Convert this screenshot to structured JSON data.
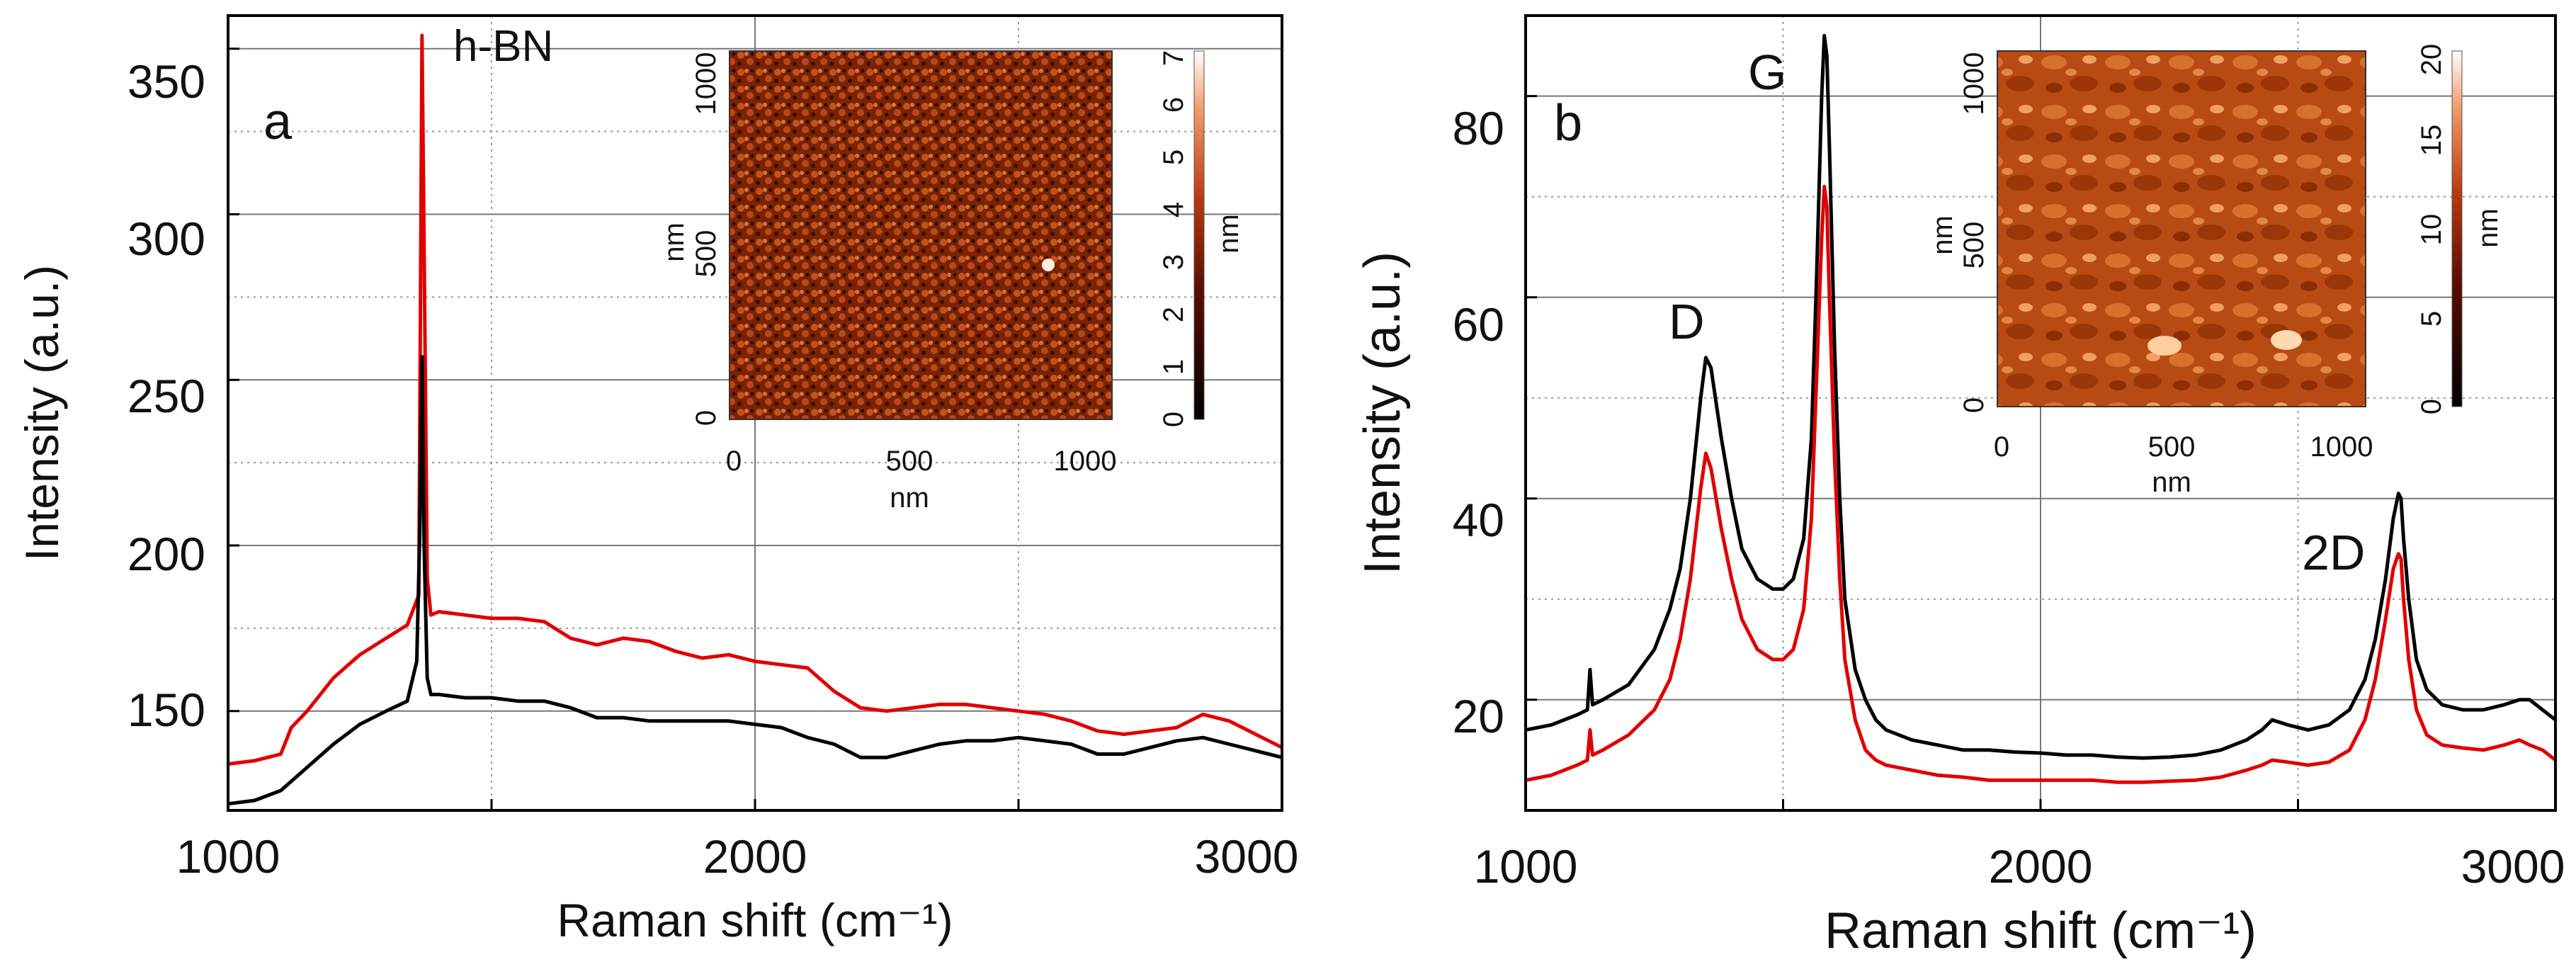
{
  "chart_data": [
    {
      "type": "line",
      "panel_label": "a",
      "xlabel": "Raman shift (cm⁻¹)",
      "ylabel": "Intensity (a.u.)",
      "xlim": [
        1000,
        3000
      ],
      "ylim": [
        120,
        360
      ],
      "xticks": [
        "1000",
        "2000",
        "3000"
      ],
      "yticks": [
        "150",
        "200",
        "250",
        "300",
        "350"
      ],
      "annotations": [
        {
          "text": "h-BN",
          "x": 1380,
          "y": 352
        }
      ],
      "series": [
        {
          "name": "red",
          "color": "#e00000",
          "x": [
            1000,
            1050,
            1100,
            1120,
            1150,
            1200,
            1250,
            1300,
            1340,
            1362,
            1368,
            1372,
            1378,
            1385,
            1400,
            1450,
            1500,
            1550,
            1600,
            1650,
            1700,
            1750,
            1800,
            1850,
            1900,
            1950,
            2000,
            2050,
            2100,
            2150,
            2200,
            2250,
            2300,
            2350,
            2400,
            2450,
            2500,
            2550,
            2600,
            2650,
            2700,
            2750,
            2800,
            2850,
            2900,
            2950,
            3000
          ],
          "values": [
            134,
            135,
            137,
            145,
            150,
            160,
            167,
            172,
            176,
            185,
            354,
            290,
            190,
            179,
            180,
            179,
            178,
            178,
            177,
            172,
            170,
            172,
            171,
            168,
            166,
            167,
            165,
            164,
            163,
            156,
            151,
            150,
            151,
            152,
            152,
            151,
            150,
            149,
            147,
            144,
            143,
            144,
            145,
            149,
            147,
            143,
            139
          ]
        },
        {
          "name": "black",
          "color": "#000000",
          "x": [
            1000,
            1050,
            1100,
            1150,
            1200,
            1250,
            1300,
            1340,
            1358,
            1364,
            1368,
            1372,
            1378,
            1385,
            1400,
            1450,
            1500,
            1550,
            1600,
            1650,
            1700,
            1750,
            1800,
            1850,
            1900,
            1950,
            2000,
            2050,
            2100,
            2150,
            2200,
            2250,
            2300,
            2350,
            2400,
            2450,
            2500,
            2550,
            2600,
            2650,
            2700,
            2750,
            2800,
            2850,
            2900,
            2950,
            3000
          ],
          "values": [
            122,
            123,
            126,
            133,
            140,
            146,
            150,
            153,
            165,
            205,
            257,
            200,
            160,
            155,
            155,
            154,
            154,
            153,
            153,
            151,
            148,
            148,
            147,
            147,
            147,
            147,
            146,
            145,
            142,
            140,
            136,
            136,
            138,
            140,
            141,
            141,
            142,
            141,
            140,
            137,
            137,
            139,
            141,
            142,
            140,
            138,
            136
          ]
        }
      ],
      "inset": {
        "x_ticks": [
          "0",
          "500",
          "1000"
        ],
        "xlabel": "nm",
        "y_ticks": [
          "0",
          "500",
          "1000"
        ],
        "ylabel": "nm",
        "colorbar_ticks": [
          "0",
          "1",
          "2",
          "3",
          "4",
          "5",
          "6",
          "7"
        ],
        "colorbar_label": "nm"
      }
    },
    {
      "type": "line",
      "panel_label": "b",
      "xlabel": "Raman shift (cm⁻¹)",
      "ylabel": "Intensity (a.u.)",
      "xlim": [
        1000,
        3000
      ],
      "ylim": [
        9,
        88
      ],
      "xticks": [
        "1000",
        "2000",
        "3000"
      ],
      "yticks": [
        "20",
        "40",
        "60",
        "80"
      ],
      "annotations": [
        {
          "text": "D",
          "x": 1340,
          "y": 59
        },
        {
          "text": "G",
          "x": 1580,
          "y": 82
        },
        {
          "text": "2D",
          "x": 2630,
          "y": 43
        }
      ],
      "series": [
        {
          "name": "black",
          "color": "#000000",
          "x": [
            1000,
            1050,
            1100,
            1120,
            1125,
            1130,
            1150,
            1200,
            1250,
            1280,
            1300,
            1320,
            1340,
            1350,
            1360,
            1380,
            1400,
            1420,
            1450,
            1480,
            1500,
            1520,
            1540,
            1555,
            1565,
            1575,
            1580,
            1585,
            1590,
            1600,
            1610,
            1620,
            1640,
            1660,
            1680,
            1700,
            1750,
            1800,
            1850,
            1900,
            1950,
            2000,
            2050,
            2100,
            2150,
            2200,
            2250,
            2300,
            2350,
            2400,
            2430,
            2450,
            2480,
            2520,
            2560,
            2600,
            2630,
            2650,
            2670,
            2685,
            2695,
            2700,
            2705,
            2715,
            2730,
            2750,
            2780,
            2820,
            2860,
            2900,
            2930,
            2950,
            2975,
            3000
          ],
          "values": [
            17,
            17.5,
            18.5,
            19,
            23,
            19.5,
            20,
            21.5,
            25,
            29,
            33,
            40,
            50,
            54,
            53,
            46,
            40,
            35,
            32,
            31,
            31,
            32,
            36,
            46,
            62,
            80,
            86,
            84,
            75,
            55,
            40,
            30,
            23,
            20,
            18,
            17,
            16,
            15.5,
            15,
            15,
            14.8,
            14.7,
            14.5,
            14.5,
            14.3,
            14.2,
            14.3,
            14.5,
            15,
            16,
            17,
            18,
            17.5,
            17,
            17.5,
            19,
            22,
            26,
            32,
            38,
            40.5,
            40,
            36,
            30,
            24,
            21,
            19.5,
            19,
            19,
            19.5,
            20,
            20,
            19,
            18
          ]
        },
        {
          "name": "red",
          "color": "#e00000",
          "x": [
            1000,
            1050,
            1100,
            1120,
            1125,
            1130,
            1150,
            1200,
            1250,
            1280,
            1300,
            1320,
            1340,
            1350,
            1360,
            1380,
            1400,
            1420,
            1450,
            1480,
            1500,
            1520,
            1540,
            1555,
            1565,
            1575,
            1580,
            1585,
            1590,
            1600,
            1610,
            1620,
            1640,
            1660,
            1680,
            1700,
            1750,
            1800,
            1850,
            1900,
            1950,
            2000,
            2050,
            2100,
            2150,
            2200,
            2250,
            2300,
            2350,
            2400,
            2430,
            2450,
            2480,
            2520,
            2560,
            2600,
            2630,
            2650,
            2670,
            2685,
            2695,
            2700,
            2705,
            2715,
            2730,
            2750,
            2780,
            2820,
            2860,
            2900,
            2930,
            2950,
            2975,
            3000
          ],
          "values": [
            12,
            12.5,
            13.5,
            14,
            17,
            14.5,
            15,
            16.5,
            19,
            22,
            26,
            32,
            41,
            44.5,
            43,
            37,
            32,
            28,
            25,
            24,
            24,
            25,
            29,
            38,
            52,
            66,
            71,
            69,
            60,
            44,
            32,
            24,
            18,
            15,
            14,
            13.5,
            13,
            12.5,
            12.3,
            12,
            12,
            12,
            12,
            12,
            11.8,
            11.8,
            11.9,
            12,
            12.3,
            13,
            13.5,
            14,
            13.8,
            13.5,
            13.8,
            15,
            18,
            22,
            28,
            33,
            34.5,
            34,
            30,
            24,
            19,
            16.5,
            15.5,
            15.2,
            15,
            15.5,
            16,
            15.5,
            15,
            14
          ]
        }
      ],
      "inset": {
        "x_ticks": [
          "0",
          "500",
          "1000"
        ],
        "xlabel": "nm",
        "y_ticks": [
          "0",
          "500",
          "1000"
        ],
        "ylabel": "nm",
        "colorbar_ticks": [
          "0",
          "5",
          "10",
          "15",
          "20"
        ],
        "colorbar_label": "nm"
      }
    }
  ]
}
